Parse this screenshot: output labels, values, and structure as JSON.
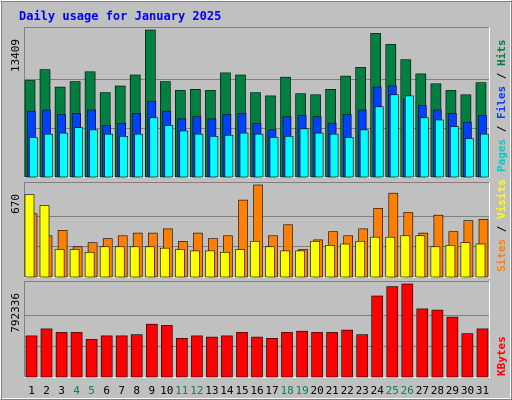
{
  "chart_data": {
    "type": "bar",
    "title": "Daily usage for January 2025",
    "categories": [
      "1",
      "2",
      "3",
      "4",
      "5",
      "6",
      "7",
      "8",
      "9",
      "10",
      "11",
      "12",
      "13",
      "14",
      "15",
      "16",
      "17",
      "18",
      "19",
      "20",
      "21",
      "22",
      "23",
      "24",
      "25",
      "26",
      "27",
      "28",
      "29",
      "30",
      "31"
    ],
    "weekend_days": [
      "4",
      "5",
      "11",
      "12",
      "18",
      "19",
      "25",
      "26"
    ],
    "panels": [
      {
        "id": "hits",
        "max_label": "13409",
        "ymax": 13409,
        "side_labels": [
          "Pages",
          "Files",
          "Hits"
        ],
        "series": [
          {
            "name": "Hits",
            "color": "#008040",
            "values": [
              8800,
              9800,
              8200,
              8700,
              9600,
              7700,
              8300,
              9300,
              13409,
              8700,
              7900,
              8000,
              7900,
              9500,
              9300,
              7700,
              7400,
              9100,
              7600,
              7500,
              8000,
              9200,
              10000,
              13100,
              12100,
              10700,
              9400,
              8500,
              7900,
              7500,
              8600
            ]
          },
          {
            "name": "Files",
            "color": "#0040ff",
            "values": [
              6000,
              6100,
              5700,
              5800,
              6100,
              4700,
              4900,
              5800,
              6900,
              6000,
              5300,
              5500,
              5300,
              5700,
              5800,
              4900,
              4300,
              5500,
              5600,
              5500,
              4900,
              5700,
              6100,
              8200,
              8300,
              7100,
              6500,
              6100,
              5800,
              5000,
              5600
            ]
          },
          {
            "name": "Pages",
            "color": "#00ffff",
            "values": [
              3600,
              3900,
              4000,
              4500,
              4300,
              3900,
              3700,
              3900,
              5400,
              4700,
              4200,
              3900,
              3700,
              3800,
              4000,
              3900,
              3600,
              3700,
              4400,
              4000,
              3900,
              3600,
              4300,
              6400,
              7500,
              7400,
              5400,
              5200,
              4600,
              3500,
              3900
            ]
          }
        ]
      },
      {
        "id": "visits",
        "max_label": "670",
        "ymax": 670,
        "side_labels": [
          "Sites",
          "Visits"
        ],
        "series": [
          {
            "name": "Visits",
            "color": "#ff8000",
            "values": [
              460,
              300,
              340,
              220,
              250,
              280,
              300,
              320,
              320,
              350,
              260,
              320,
              280,
              300,
              560,
              670,
              300,
              380,
              200,
              270,
              330,
              300,
              350,
              500,
              610,
              470,
              320,
              450,
              330,
              410,
              420
            ]
          },
          {
            "name": "Sites",
            "color": "#ffff00",
            "values": [
              600,
              520,
              200,
              200,
              180,
              220,
              220,
              220,
              220,
              210,
              200,
              190,
              190,
              180,
              200,
              260,
              220,
              190,
              190,
              260,
              230,
              240,
              260,
              290,
              290,
              300,
              300,
              220,
              230,
              250,
              240
            ]
          }
        ]
      },
      {
        "id": "kbytes",
        "max_label": "792336",
        "ymax": 792336,
        "side_labels": [
          "KBytes"
        ],
        "series": [
          {
            "name": "KBytes",
            "color": "#ff0000",
            "values": [
              350000,
              410000,
              380000,
              380000,
              320000,
              350000,
              350000,
              360000,
              450000,
              440000,
              330000,
              350000,
              340000,
              350000,
              380000,
              340000,
              330000,
              380000,
              390000,
              380000,
              380000,
              400000,
              360000,
              690000,
              770000,
              792336,
              580000,
              570000,
              510000,
              370000,
              410000
            ]
          }
        ]
      }
    ],
    "colors": {
      "background": "#c0c0c0",
      "plot": "#c0c0c0",
      "grid": "#808080",
      "title": "#0000ff",
      "weekday_label": "#000000",
      "weekend_label": "#00805c",
      "label_pages": "#00cccc",
      "label_files": "#0040ff",
      "label_hits": "#008040",
      "label_sites": "#ff8000",
      "label_visits": "#ffff00",
      "label_kbytes": "#ff0000"
    }
  }
}
